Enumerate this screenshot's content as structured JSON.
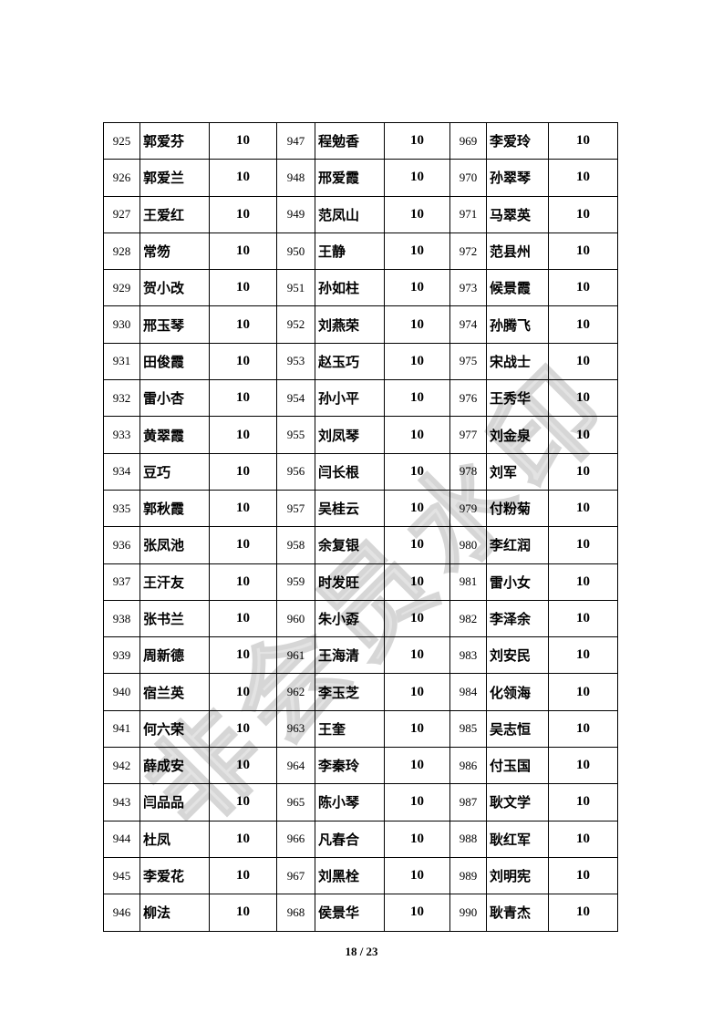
{
  "document": {
    "watermark_text": "非会员水印",
    "footer_page_indicator": "18 / 23",
    "colors": {
      "background": "#ffffff",
      "table_border": "#000000",
      "text": "#000000",
      "watermark": "#d6d6d6"
    },
    "table": {
      "groups": [
        {
          "entries": [
            {
              "no": "925",
              "name": "郭爱芬",
              "score": "10"
            },
            {
              "no": "926",
              "name": "郭爱兰",
              "score": "10"
            },
            {
              "no": "927",
              "name": "王爱红",
              "score": "10"
            },
            {
              "no": "928",
              "name": "常笏",
              "score": "10"
            },
            {
              "no": "929",
              "name": "贺小改",
              "score": "10"
            },
            {
              "no": "930",
              "name": "邢玉琴",
              "score": "10"
            },
            {
              "no": "931",
              "name": "田俊霞",
              "score": "10"
            },
            {
              "no": "932",
              "name": "雷小杏",
              "score": "10"
            },
            {
              "no": "933",
              "name": "黄翠霞",
              "score": "10"
            },
            {
              "no": "934",
              "name": "豆巧",
              "score": "10"
            },
            {
              "no": "935",
              "name": "郭秋霞",
              "score": "10"
            },
            {
              "no": "936",
              "name": "张凤池",
              "score": "10"
            },
            {
              "no": "937",
              "name": "王汗友",
              "score": "10"
            },
            {
              "no": "938",
              "name": "张书兰",
              "score": "10"
            },
            {
              "no": "939",
              "name": "周新德",
              "score": "10"
            },
            {
              "no": "940",
              "name": "宿兰英",
              "score": "10"
            },
            {
              "no": "941",
              "name": "何六荣",
              "score": "10"
            },
            {
              "no": "942",
              "name": "薛成安",
              "score": "10"
            },
            {
              "no": "943",
              "name": "闫品品",
              "score": "10"
            },
            {
              "no": "944",
              "name": "杜凤",
              "score": "10"
            },
            {
              "no": "945",
              "name": "李爱花",
              "score": "10"
            },
            {
              "no": "946",
              "name": "柳法",
              "score": "10"
            }
          ]
        },
        {
          "entries": [
            {
              "no": "947",
              "name": "程勉香",
              "score": "10"
            },
            {
              "no": "948",
              "name": "邢爱霞",
              "score": "10"
            },
            {
              "no": "949",
              "name": "范凤山",
              "score": "10"
            },
            {
              "no": "950",
              "name": "王静",
              "score": "10"
            },
            {
              "no": "951",
              "name": "孙如柱",
              "score": "10"
            },
            {
              "no": "952",
              "name": "刘燕荣",
              "score": "10"
            },
            {
              "no": "953",
              "name": "赵玉巧",
              "score": "10"
            },
            {
              "no": "954",
              "name": "孙小平",
              "score": "10"
            },
            {
              "no": "955",
              "name": "刘凤琴",
              "score": "10"
            },
            {
              "no": "956",
              "name": "闫长根",
              "score": "10"
            },
            {
              "no": "957",
              "name": "吴桂云",
              "score": "10"
            },
            {
              "no": "958",
              "name": "余复银",
              "score": "10"
            },
            {
              "no": "959",
              "name": "时发旺",
              "score": "10"
            },
            {
              "no": "960",
              "name": "朱小孬",
              "score": "10"
            },
            {
              "no": "961",
              "name": "王海清",
              "score": "10"
            },
            {
              "no": "962",
              "name": "李玉芝",
              "score": "10"
            },
            {
              "no": "963",
              "name": "王奎",
              "score": "10"
            },
            {
              "no": "964",
              "name": "李秦玲",
              "score": "10"
            },
            {
              "no": "965",
              "name": "陈小琴",
              "score": "10"
            },
            {
              "no": "966",
              "name": "凡春合",
              "score": "10"
            },
            {
              "no": "967",
              "name": "刘黑栓",
              "score": "10"
            },
            {
              "no": "968",
              "name": "侯景华",
              "score": "10"
            }
          ]
        },
        {
          "entries": [
            {
              "no": "969",
              "name": "李爱玲",
              "score": "10"
            },
            {
              "no": "970",
              "name": "孙翠琴",
              "score": "10"
            },
            {
              "no": "971",
              "name": "马翠英",
              "score": "10"
            },
            {
              "no": "972",
              "name": "范县州",
              "score": "10"
            },
            {
              "no": "973",
              "name": "候景霞",
              "score": "10"
            },
            {
              "no": "974",
              "name": "孙腾飞",
              "score": "10"
            },
            {
              "no": "975",
              "name": "宋战士",
              "score": "10"
            },
            {
              "no": "976",
              "name": "王秀华",
              "score": "10"
            },
            {
              "no": "977",
              "name": "刘金泉",
              "score": "10"
            },
            {
              "no": "978",
              "name": "刘军",
              "score": "10"
            },
            {
              "no": "979",
              "name": "付粉菊",
              "score": "10"
            },
            {
              "no": "980",
              "name": "李红润",
              "score": "10"
            },
            {
              "no": "981",
              "name": "雷小女",
              "score": "10"
            },
            {
              "no": "982",
              "name": "李泽余",
              "score": "10"
            },
            {
              "no": "983",
              "name": "刘安民",
              "score": "10"
            },
            {
              "no": "984",
              "name": "化领海",
              "score": "10"
            },
            {
              "no": "985",
              "name": "吴志恒",
              "score": "10"
            },
            {
              "no": "986",
              "name": "付玉国",
              "score": "10"
            },
            {
              "no": "987",
              "name": "耿文学",
              "score": "10"
            },
            {
              "no": "988",
              "name": "耿红军",
              "score": "10"
            },
            {
              "no": "989",
              "name": "刘明宪",
              "score": "10"
            },
            {
              "no": "990",
              "name": "耿青杰",
              "score": "10"
            }
          ]
        }
      ]
    }
  }
}
